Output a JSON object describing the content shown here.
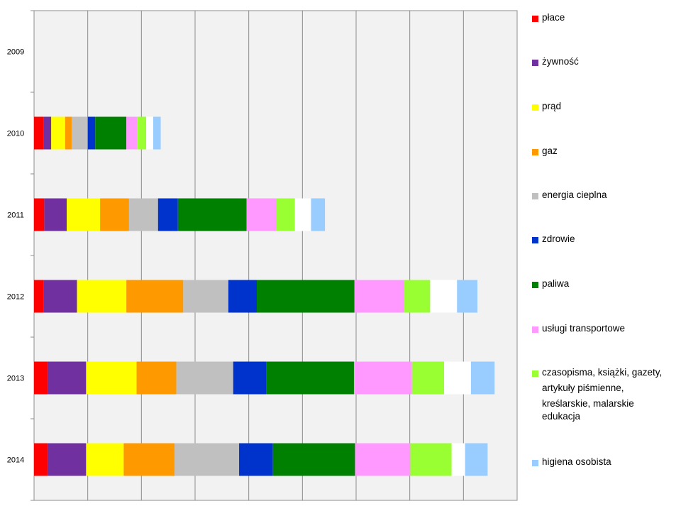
{
  "chart_data": {
    "type": "bar",
    "orientation": "horizontal",
    "stacked": true,
    "categories": [
      "2009",
      "2010",
      "2011",
      "2012",
      "2013",
      "2014"
    ],
    "xlim": [
      0,
      9
    ],
    "grid": true,
    "legend_position": "right",
    "series": [
      {
        "name": "płace",
        "color": "#FF0000",
        "values": [
          0,
          0.18,
          0.19,
          0.18,
          0.25,
          0.25
        ]
      },
      {
        "name": "żywność",
        "color": "#7030A0",
        "values": [
          0,
          0.14,
          0.42,
          0.62,
          0.72,
          0.72
        ]
      },
      {
        "name": "prąd",
        "color": "#FFFF00",
        "values": [
          0,
          0.26,
          0.62,
          0.92,
          0.94,
          0.7
        ]
      },
      {
        "name": "gaz",
        "color": "#FF9900",
        "values": [
          0,
          0.12,
          0.54,
          1.06,
          0.74,
          0.95
        ]
      },
      {
        "name": "energia cieplna",
        "color": "#C0C0C0",
        "values": [
          0,
          0.3,
          0.54,
          0.84,
          1.06,
          1.2
        ]
      },
      {
        "name": "zdrowie",
        "color": "#0033CC",
        "values": [
          0,
          0.14,
          0.37,
          0.53,
          0.62,
          0.63
        ]
      },
      {
        "name": "paliwa",
        "color": "#008000",
        "values": [
          0,
          0.58,
          1.28,
          1.82,
          1.63,
          1.53
        ]
      },
      {
        "name": "usługi transportowe",
        "color": "#FF99FF",
        "values": [
          0,
          0.2,
          0.56,
          0.93,
          1.08,
          1.03
        ]
      },
      {
        "name": "czasopisma, książki, gazety, artykuły piśmienne, kreślarskie, malarskie",
        "color": "#99FF33",
        "values": [
          0,
          0.17,
          0.34,
          0.48,
          0.6,
          0.77
        ]
      },
      {
        "name": "edukacja",
        "color": "#FFFFFF",
        "values": [
          0,
          0.13,
          0.3,
          0.5,
          0.5,
          0.25
        ]
      },
      {
        "name": "higiena osobista",
        "color": "#99CCFF",
        "values": [
          0,
          0.14,
          0.26,
          0.38,
          0.44,
          0.42
        ]
      }
    ]
  },
  "legend": {
    "items": [
      "płace",
      "żywność",
      "prąd",
      "gaz",
      "energia cieplna",
      "zdrowie",
      "paliwa",
      "usługi transportowe",
      "czasopisma, książki, gazety, artykuły piśmienne, kreślarskie, malarskie",
      "edukacja",
      "higiena osobista"
    ]
  }
}
